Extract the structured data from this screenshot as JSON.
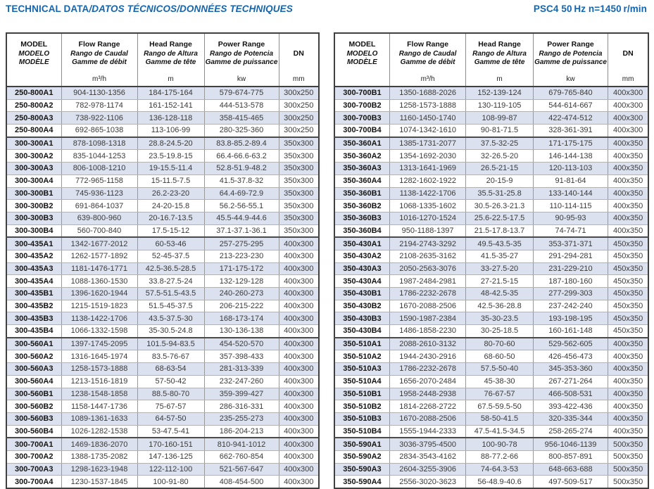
{
  "header": {
    "title_main": "TECHNICAL DATA",
    "title_rest": "/DATOS TÉCNICOS/DONNÉES TECHNIQUES",
    "spec": "PSC4 50 Hz  n=1450 r/min"
  },
  "colors": {
    "accent_blue": "#1565ae",
    "row_stripe": "#dbe1ee",
    "table_border": "#404040"
  },
  "table_header": {
    "model_lines": [
      "MODEL",
      "MODELO",
      "MODÈLE"
    ],
    "flow_lines": [
      "Flow Range",
      "Rango de Caudal",
      "Gamme de débit"
    ],
    "head_lines": [
      "Head Range",
      "Rango de Altura",
      "Gamme de tête"
    ],
    "power_lines": [
      "Power Range",
      "Rango de Potencia",
      "Gamme de puissance"
    ],
    "dn_label": "DN",
    "units": {
      "model": "",
      "flow": "m³/h",
      "head": "m",
      "power": "kw",
      "dn": "mm"
    }
  },
  "layout": {
    "group_start_indices": [
      4,
      12,
      20,
      28
    ]
  },
  "tables": {
    "left": {
      "rows": [
        [
          "250-800A1",
          "904-1130-1356",
          "184-175-164",
          "579-674-775",
          "300x250"
        ],
        [
          "250-800A2",
          "782-978-1174",
          "161-152-141",
          "444-513-578",
          "300x250"
        ],
        [
          "250-800A3",
          "738-922-1106",
          "136-128-118",
          "358-415-465",
          "300x250"
        ],
        [
          "250-800A4",
          "692-865-1038",
          "113-106-99",
          "280-325-360",
          "300x250"
        ],
        [
          "300-300A1",
          "878-1098-1318",
          "28.8-24.5-20",
          "83.8-85.2-89.4",
          "350x300"
        ],
        [
          "300-300A2",
          "835-1044-1253",
          "23.5-19.8-15",
          "66.4-66.6-63.2",
          "350x300"
        ],
        [
          "300-300A3",
          "806-1008-1210",
          "19-15.5-11.4",
          "52.8-51.9-48.2",
          "350x300"
        ],
        [
          "300-300A4",
          "772-965-1158",
          "15-11.5-7.5",
          "41.5-37.8-32",
          "350x300"
        ],
        [
          "300-300B1",
          "745-936-1123",
          "26.2-23-20",
          "64.4-69-72.9",
          "350x300"
        ],
        [
          "300-300B2",
          "691-864-1037",
          "24-20-15.8",
          "56.2-56-55.1",
          "350x300"
        ],
        [
          "300-300B3",
          "639-800-960",
          "20-16.7-13.5",
          "45.5-44.9-44.6",
          "350x300"
        ],
        [
          "300-300B4",
          "560-700-840",
          "17.5-15-12",
          "37.1-37.1-36.1",
          "350x300"
        ],
        [
          "300-435A1",
          "1342-1677-2012",
          "60-53-46",
          "257-275-295",
          "400x300"
        ],
        [
          "300-435A2",
          "1262-1577-1892",
          "52-45-37.5",
          "213-223-230",
          "400x300"
        ],
        [
          "300-435A3",
          "1181-1476-1771",
          "42.5-36.5-28.5",
          "171-175-172",
          "400x300"
        ],
        [
          "300-435A4",
          "1088-1360-1530",
          "33.8-27.5-24",
          "132-129-128",
          "400x300"
        ],
        [
          "300-435B1",
          "1396-1620-1944",
          "57.5-51.5-43.5",
          "240-260-273",
          "400x300"
        ],
        [
          "300-435B2",
          "1215-1519-1823",
          "51.5-45-37.5",
          "206-215-222",
          "400x300"
        ],
        [
          "300-435B3",
          "1138-1422-1706",
          "43.5-37.5-30",
          "168-173-174",
          "400x300"
        ],
        [
          "300-435B4",
          "1066-1332-1598",
          "35-30.5-24.8",
          "130-136-138",
          "400x300"
        ],
        [
          "300-560A1",
          "1397-1745-2095",
          "101.5-94-83.5",
          "454-520-570",
          "400x300"
        ],
        [
          "300-560A2",
          "1316-1645-1974",
          "83.5-76-67",
          "357-398-433",
          "400x300"
        ],
        [
          "300-560A3",
          "1258-1573-1888",
          "68-63-54",
          "281-313-339",
          "400x300"
        ],
        [
          "300-560A4",
          "1213-1516-1819",
          "57-50-42",
          "232-247-260",
          "400x300"
        ],
        [
          "300-560B1",
          "1238-1548-1858",
          "88.5-80-70",
          "359-399-427",
          "400x300"
        ],
        [
          "300-560B2",
          "1158-1447-1736",
          "75-67-57",
          "286-316-331",
          "400x300"
        ],
        [
          "300-560B3",
          "1089-1361-1633",
          "64-57-50",
          "235-255-273",
          "400x300"
        ],
        [
          "300-560B4",
          "1026-1282-1538",
          "53-47.5-41",
          "186-204-213",
          "400x300"
        ],
        [
          "300-700A1",
          "1469-1836-2070",
          "170-160-151",
          "810-941-1012",
          "400x300"
        ],
        [
          "300-700A2",
          "1388-1735-2082",
          "147-136-125",
          "662-760-854",
          "400x300"
        ],
        [
          "300-700A3",
          "1298-1623-1948",
          "122-112-100",
          "521-567-647",
          "400x300"
        ],
        [
          "300-700A4",
          "1230-1537-1845",
          "100-91-80",
          "408-454-500",
          "400x300"
        ]
      ]
    },
    "right": {
      "rows": [
        [
          "300-700B1",
          "1350-1688-2026",
          "152-139-124",
          "679-765-840",
          "400x300"
        ],
        [
          "300-700B2",
          "1258-1573-1888",
          "130-119-105",
          "544-614-667",
          "400x300"
        ],
        [
          "300-700B3",
          "1160-1450-1740",
          "108-99-87",
          "422-474-512",
          "400x300"
        ],
        [
          "300-700B4",
          "1074-1342-1610",
          "90-81-71.5",
          "328-361-391",
          "400x300"
        ],
        [
          "350-360A1",
          "1385-1731-2077",
          "37.5-32-25",
          "171-175-175",
          "400x350"
        ],
        [
          "350-360A2",
          "1354-1692-2030",
          "32-26.5-20",
          "146-144-138",
          "400x350"
        ],
        [
          "350-360A3",
          "1313-1641-1969",
          "26.5-21-15",
          "120-113-103",
          "400x350"
        ],
        [
          "350-360A4",
          "1282-1602-1922",
          "20-15-9",
          "91-81-64",
          "400x350"
        ],
        [
          "350-360B1",
          "1138-1422-1706",
          "35.5-31-25.8",
          "133-140-144",
          "400x350"
        ],
        [
          "350-360B2",
          "1068-1335-1602",
          "30.5-26.3-21.3",
          "110-114-115",
          "400x350"
        ],
        [
          "350-360B3",
          "1016-1270-1524",
          "25.6-22.5-17.5",
          "90-95-93",
          "400x350"
        ],
        [
          "350-360B4",
          "950-1188-1397",
          "21.5-17.8-13.7",
          "74-74-71",
          "400x350"
        ],
        [
          "350-430A1",
          "2194-2743-3292",
          "49.5-43.5-35",
          "353-371-371",
          "450x350"
        ],
        [
          "350-430A2",
          "2108-2635-3162",
          "41.5-35-27",
          "291-294-281",
          "450x350"
        ],
        [
          "350-430A3",
          "2050-2563-3076",
          "33-27.5-20",
          "231-229-210",
          "450x350"
        ],
        [
          "350-430A4",
          "1987-2484-2981",
          "27-21.5-15",
          "187-180-160",
          "450x350"
        ],
        [
          "350-430B1",
          "1786-2232-2678",
          "48-42.5-35",
          "277-299-303",
          "450x350"
        ],
        [
          "350-430B2",
          "1670-2088-2506",
          "42.5-36-28.8",
          "237-242-240",
          "450x350"
        ],
        [
          "350-430B3",
          "1590-1987-2384",
          "35-30-23.5",
          "193-198-195",
          "450x350"
        ],
        [
          "350-430B4",
          "1486-1858-2230",
          "30-25-18.5",
          "160-161-148",
          "450x350"
        ],
        [
          "350-510A1",
          "2088-2610-3132",
          "80-70-60",
          "529-562-605",
          "400x350"
        ],
        [
          "350-510A2",
          "1944-2430-2916",
          "68-60-50",
          "426-456-473",
          "400x350"
        ],
        [
          "350-510A3",
          "1786-2232-2678",
          "57.5-50-40",
          "345-353-360",
          "400x350"
        ],
        [
          "350-510A4",
          "1656-2070-2484",
          "45-38-30",
          "267-271-264",
          "400x350"
        ],
        [
          "350-510B1",
          "1958-2448-2938",
          "76-67-57",
          "466-508-531",
          "400x350"
        ],
        [
          "350-510B2",
          "1814-2268-2722",
          "67.5-59.5-50",
          "393-422-436",
          "400x350"
        ],
        [
          "350-510B3",
          "1670-2088-2506",
          "58-50-41.5",
          "320-335-344",
          "400x350"
        ],
        [
          "350-510B4",
          "1555-1944-2333",
          "47.5-41.5-34.5",
          "258-265-274",
          "400x350"
        ],
        [
          "350-590A1",
          "3036-3795-4500",
          "100-90-78",
          "956-1046-1139",
          "500x350"
        ],
        [
          "350-590A2",
          "2834-3543-4162",
          "88-77.2-66",
          "800-857-891",
          "500x350"
        ],
        [
          "350-590A3",
          "2604-3255-3906",
          "74-64.3-53",
          "648-663-688",
          "500x350"
        ],
        [
          "350-590A4",
          "2556-3020-3623",
          "56-48.9-40.6",
          "497-509-517",
          "500x350"
        ]
      ]
    }
  }
}
